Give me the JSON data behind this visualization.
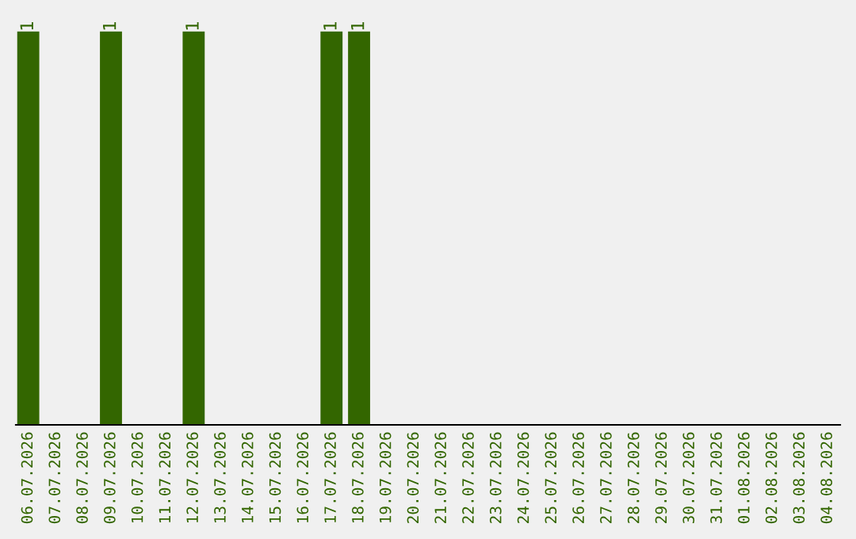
{
  "chart_data": {
    "type": "bar",
    "categories": [
      "06.07.2026",
      "07.07.2026",
      "08.07.2026",
      "09.07.2026",
      "10.07.2026",
      "11.07.2026",
      "12.07.2026",
      "13.07.2026",
      "14.07.2026",
      "15.07.2026",
      "16.07.2026",
      "17.07.2026",
      "18.07.2026",
      "19.07.2026",
      "20.07.2026",
      "21.07.2026",
      "22.07.2026",
      "23.07.2026",
      "24.07.2026",
      "25.07.2026",
      "26.07.2026",
      "27.07.2026",
      "28.07.2026",
      "29.07.2026",
      "30.07.2026",
      "31.07.2026",
      "01.08.2026",
      "02.08.2026",
      "03.08.2026",
      "04.08.2026"
    ],
    "values": [
      1,
      0,
      0,
      1,
      0,
      0,
      1,
      0,
      0,
      0,
      0,
      1,
      1,
      0,
      0,
      0,
      0,
      0,
      0,
      0,
      0,
      0,
      0,
      0,
      0,
      0,
      0,
      0,
      0,
      0
    ],
    "value_labels": [
      "1",
      null,
      null,
      "1",
      null,
      null,
      "1",
      null,
      null,
      null,
      null,
      "1",
      "1",
      null,
      null,
      null,
      null,
      null,
      null,
      null,
      null,
      null,
      null,
      null,
      null,
      null,
      null,
      null,
      null,
      null
    ],
    "color": "#336600",
    "grid": false,
    "legend": false
  }
}
